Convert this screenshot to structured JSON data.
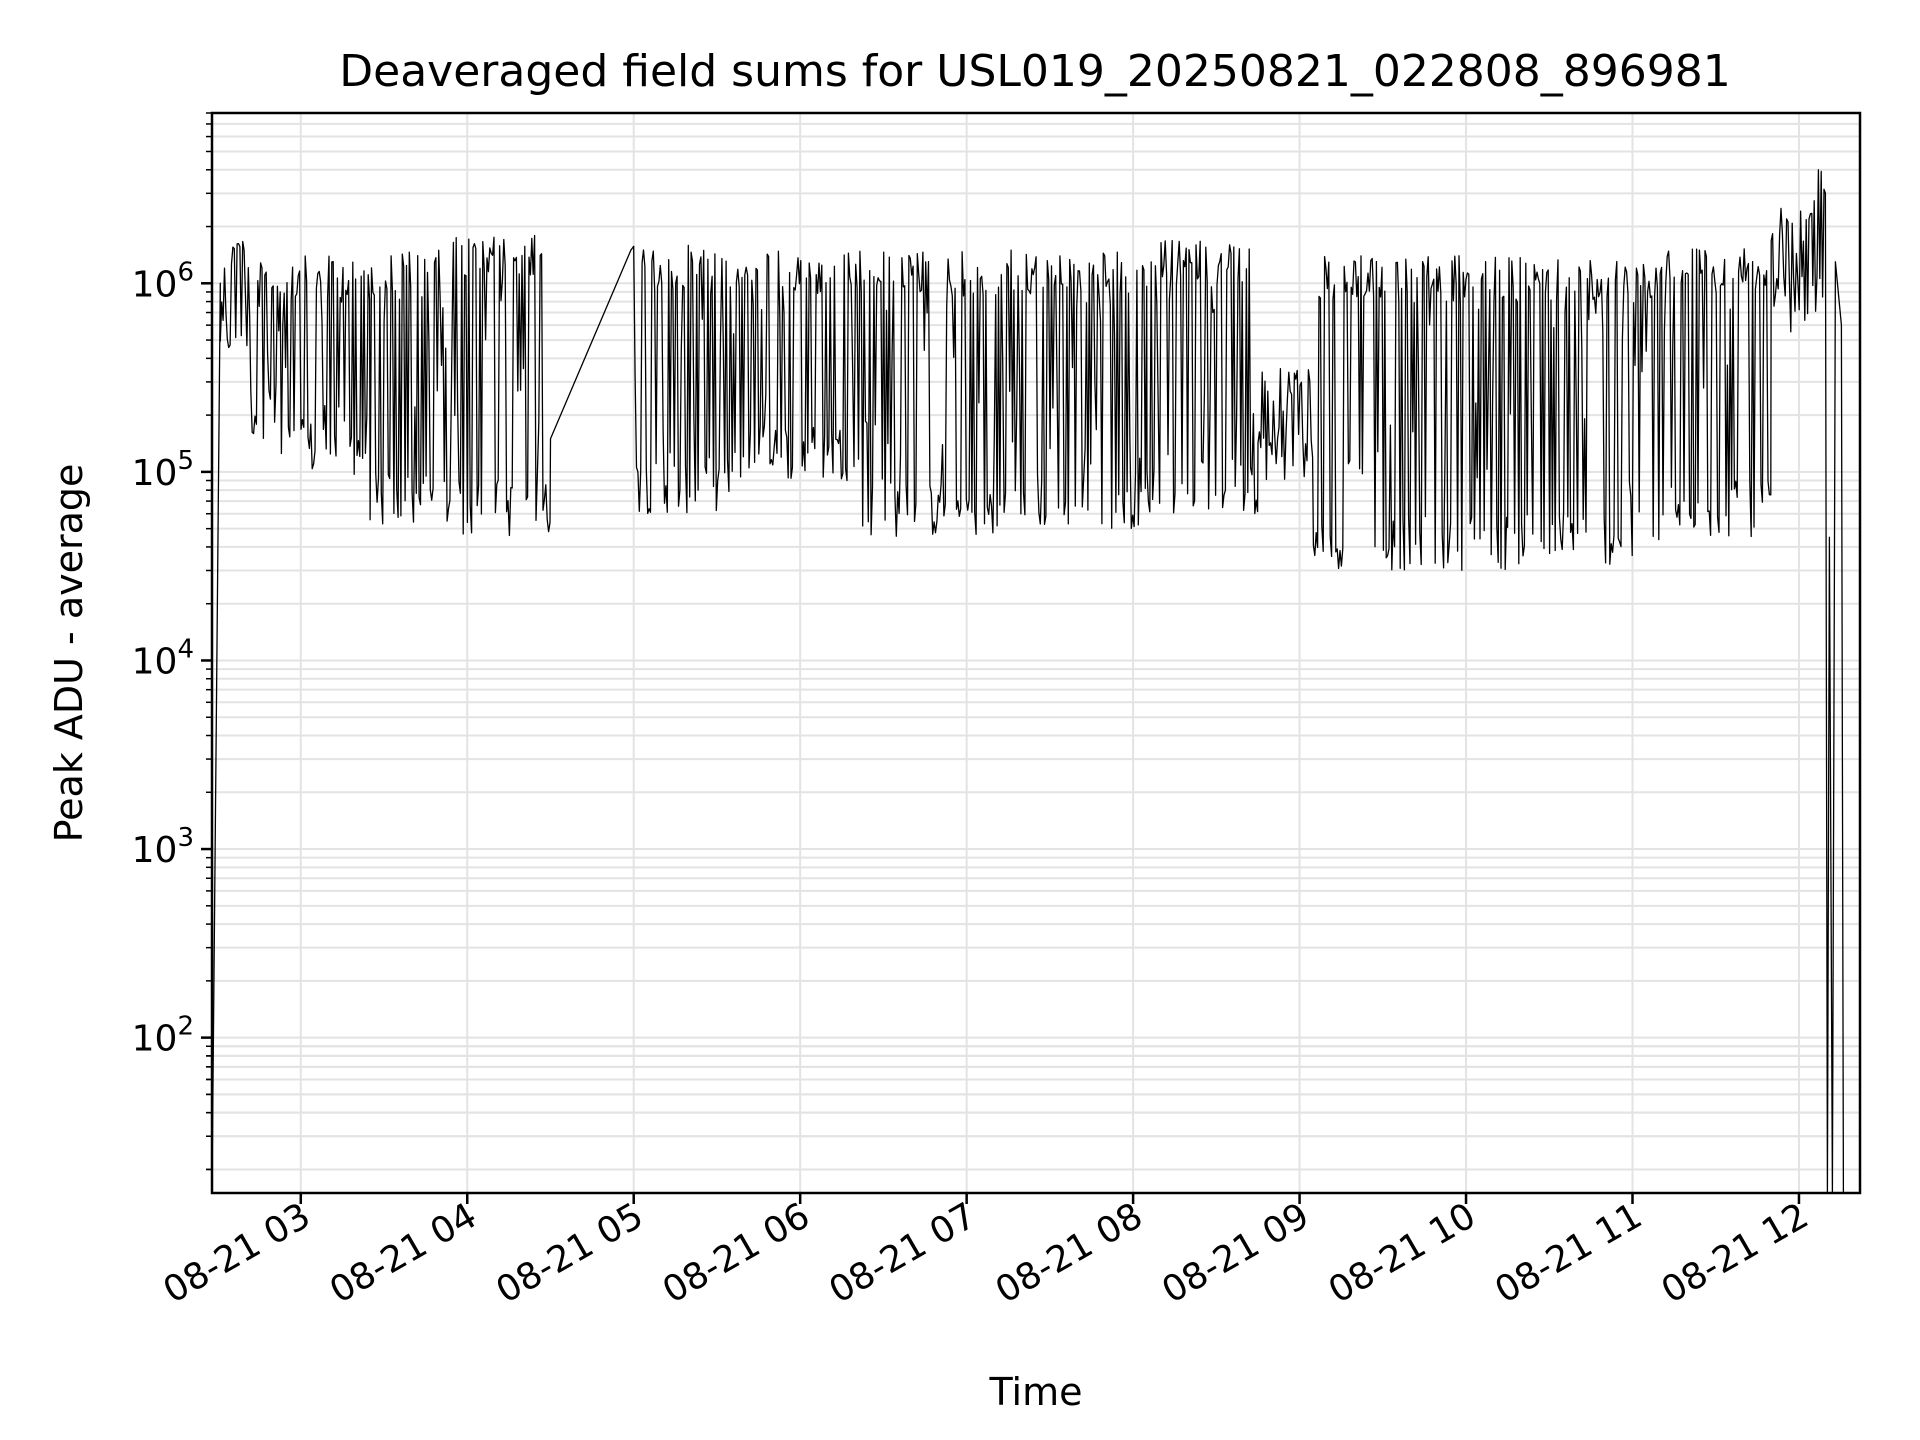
{
  "chart_data": {
    "type": "line",
    "title": "Deaveraged field sums for USL019_20250821_022808_896981",
    "xlabel": "Time",
    "ylabel": "Peak ADU - average",
    "yscale": "log",
    "ylim": [
      15,
      8000000
    ],
    "xlim": [
      "2025-08-21 02:28",
      "2025-08-21 12:22"
    ],
    "grid": true,
    "x_ticks": [
      "08-21 03",
      "08-21 04",
      "08-21 05",
      "08-21 06",
      "08-21 07",
      "08-21 08",
      "08-21 09",
      "08-21 10",
      "08-21 11",
      "08-21 12"
    ],
    "y_ticks": [
      {
        "value": 100,
        "base": "10",
        "exp": "2"
      },
      {
        "value": 1000,
        "base": "10",
        "exp": "3"
      },
      {
        "value": 10000,
        "base": "10",
        "exp": "4"
      },
      {
        "value": 100000,
        "base": "10",
        "exp": "5"
      },
      {
        "value": 1000000,
        "base": "10",
        "exp": "6"
      }
    ],
    "series": [
      {
        "color": "#000000",
        "segments": [
          {
            "start": "2025-08-21 02:28",
            "end": "2025-08-21 02:31",
            "low": 15,
            "high": 1000000
          },
          {
            "start": "2025-08-21 02:31",
            "end": "2025-08-21 02:42",
            "low": 400000,
            "high": 2000000
          },
          {
            "start": "2025-08-21 02:42",
            "end": "2025-08-21 02:53",
            "low": 150000,
            "high": 1300000
          },
          {
            "start": "2025-08-21 02:53",
            "end": "2025-08-21 03:25",
            "low": 95000,
            "high": 1400000
          },
          {
            "start": "2025-08-21 03:25",
            "end": "2025-08-21 03:55",
            "low": 50000,
            "high": 1500000
          },
          {
            "start": "2025-08-21 03:55",
            "end": "2025-08-21 04:30",
            "low": 45000,
            "high": 1800000
          },
          {
            "start": "2025-08-21 04:30",
            "end": "2025-08-21 04:59",
            "low": 150000,
            "high": 1500000,
            "gap": true
          },
          {
            "start": "2025-08-21 05:00",
            "end": "2025-08-21 05:35",
            "low": 60000,
            "high": 1600000
          },
          {
            "start": "2025-08-21 05:35",
            "end": "2025-08-21 06:20",
            "low": 90000,
            "high": 1500000
          },
          {
            "start": "2025-08-21 06:20",
            "end": "2025-08-21 07:20",
            "low": 45000,
            "high": 1500000
          },
          {
            "start": "2025-08-21 07:20",
            "end": "2025-08-21 08:05",
            "low": 50000,
            "high": 1500000
          },
          {
            "start": "2025-08-21 08:05",
            "end": "2025-08-21 08:45",
            "low": 60000,
            "high": 1700000
          },
          {
            "start": "2025-08-21 08:45",
            "end": "2025-08-21 09:05",
            "low": 90000,
            "high": 400000
          },
          {
            "start": "2025-08-21 09:05",
            "end": "2025-08-21 10:15",
            "low": 30000,
            "high": 1400000
          },
          {
            "start": "2025-08-21 10:15",
            "end": "2025-08-21 11:10",
            "low": 32000,
            "high": 1400000
          },
          {
            "start": "2025-08-21 11:10",
            "end": "2025-08-21 11:50",
            "low": 45000,
            "high": 1600000
          },
          {
            "start": "2025-08-21 11:50",
            "end": "2025-08-21 12:05",
            "low": 550000,
            "high": 2500000
          },
          {
            "start": "2025-08-21 12:05",
            "end": "2025-08-21 12:10",
            "low": 550000,
            "high": 4500000
          },
          {
            "start": "2025-08-21 12:10",
            "end": "2025-08-21 12:16",
            "low": 15,
            "high": 1500000
          }
        ]
      }
    ]
  }
}
